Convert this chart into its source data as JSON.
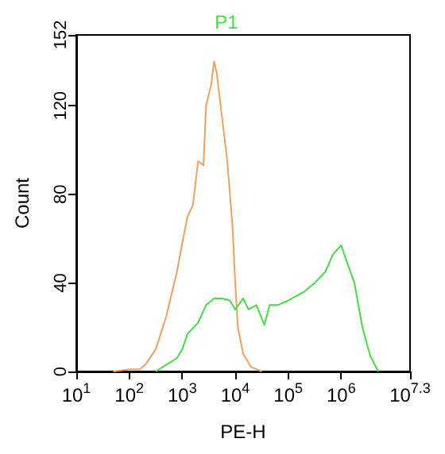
{
  "chart_data": {
    "type": "line",
    "xlabel": "PE-H",
    "ylabel": "Count",
    "log": "x",
    "legend": "top",
    "grid": false,
    "xlim": [
      10,
      19952623
    ],
    "xticks": [
      {
        "value": 10,
        "label": "10$^{1}$"
      },
      {
        "value": 100,
        "label": "10$^{2}$"
      },
      {
        "value": 1000,
        "label": "10$^{3}$"
      },
      {
        "value": 10000,
        "label": "10$^{4}$"
      },
      {
        "value": 100000,
        "label": "10$^{5}$"
      },
      {
        "value": 1000000,
        "label": "10$^{6}$"
      },
      {
        "value": 19952623,
        "label": "10$^{7.3}$"
      }
    ],
    "ylim": [
      0,
      152
    ],
    "yticks": [
      0,
      40,
      80,
      120,
      152
    ],
    "series": [
      {
        "color": "#f0a060",
        "x": [
          50,
          100,
          158,
          200,
          316,
          501,
          794,
          1000,
          1259,
          1585,
          1995,
          2512,
          2818,
          3548,
          3981,
          4467,
          5623,
          7079,
          8913,
          10000,
          11220,
          14125,
          19953,
          31623
        ],
        "values": [
          0,
          1,
          1,
          3,
          10,
          25,
          45,
          58,
          70,
          75,
          95,
          93,
          120,
          130,
          140,
          135,
          115,
          95,
          65,
          40,
          20,
          8,
          2,
          0
        ]
      },
      {
        "name": "P1",
        "color": "#44dd44",
        "x": [
          316,
          501,
          794,
          1000,
          1259,
          1995,
          2818,
          3981,
          5623,
          7943,
          10000,
          14125,
          17783,
          25119,
          35481,
          44668,
          63096,
          100000,
          141254,
          199526,
          316228,
          501187,
          707946,
          1000000,
          1258925,
          1778279,
          2511886,
          3548134,
          5011872
        ],
        "values": [
          0,
          3,
          6,
          10,
          17,
          22,
          30,
          33,
          33,
          32,
          28,
          33,
          28,
          30,
          21,
          30,
          30,
          32,
          34,
          36,
          40,
          45,
          53,
          57,
          50,
          40,
          20,
          7,
          0
        ]
      }
    ]
  }
}
